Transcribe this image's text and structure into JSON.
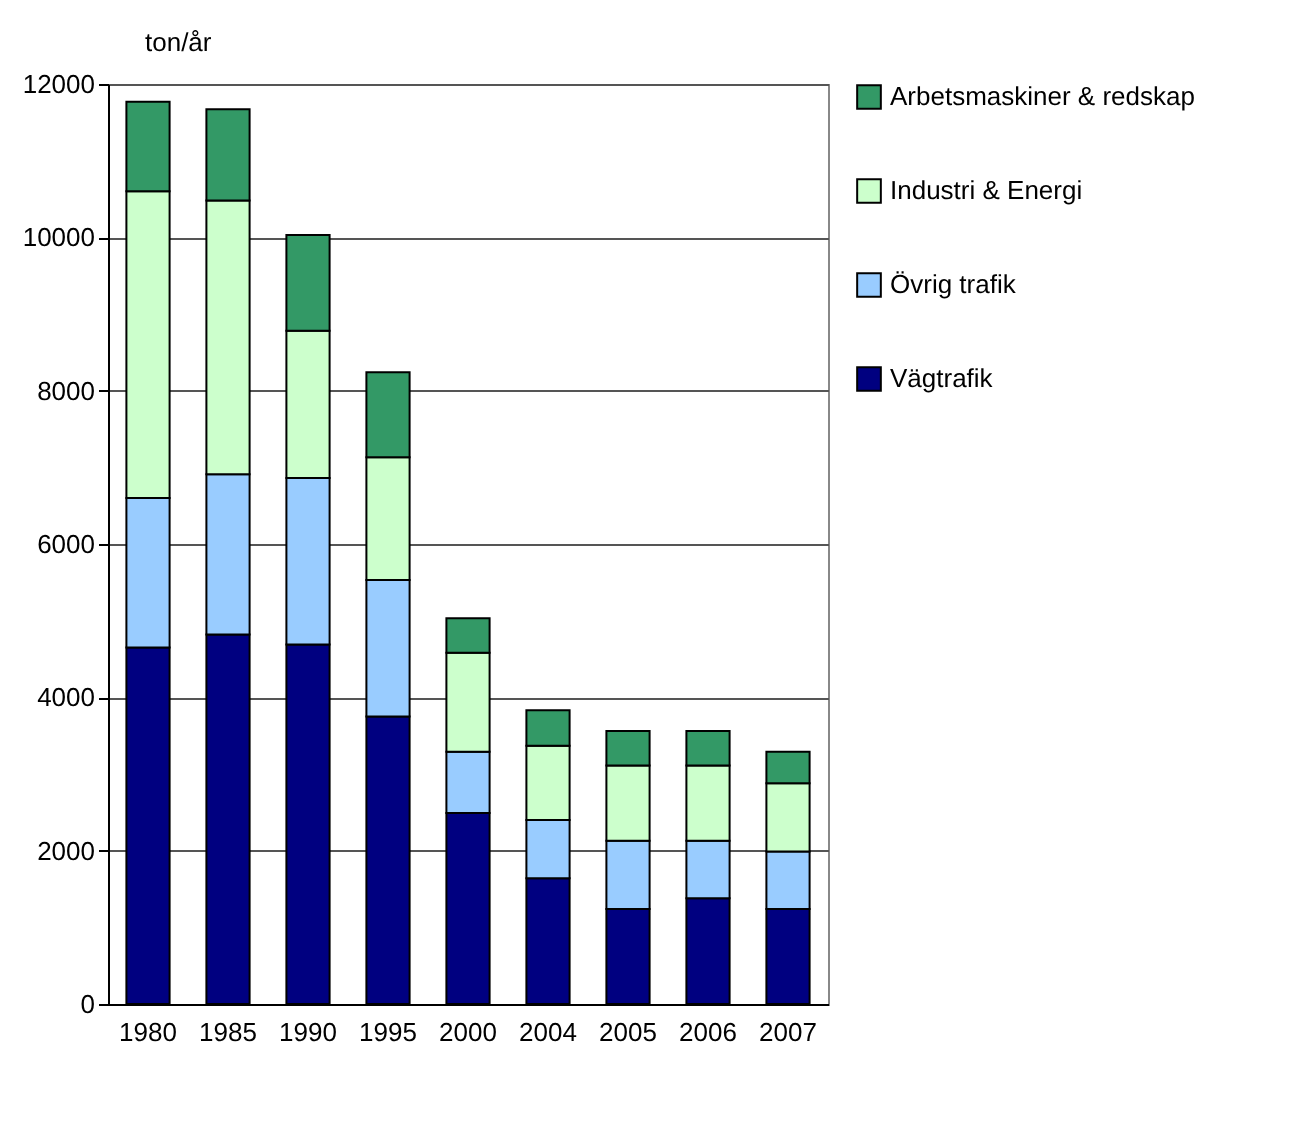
{
  "chart_data": {
    "type": "bar",
    "stacked": true,
    "ylabel": "ton/år",
    "categories": [
      "1980",
      "1985",
      "1990",
      "1995",
      "2000",
      "2004",
      "2005",
      "2006",
      "2007"
    ],
    "series": [
      {
        "name": "Vägtrafik",
        "color": "#000080",
        "values": [
          4650,
          4820,
          4690,
          3750,
          2490,
          1640,
          1240,
          1380,
          1240
        ]
      },
      {
        "name": "Övrig trafik",
        "color": "#99ccff",
        "values": [
          1950,
          2090,
          2170,
          1780,
          800,
          760,
          890,
          750,
          750
        ]
      },
      {
        "name": "Industri & Energi",
        "color": "#ccffcc",
        "values": [
          4000,
          3570,
          1920,
          1600,
          1290,
          970,
          980,
          980,
          890
        ]
      },
      {
        "name": "Arbetsmaskiner & redskap",
        "color": "#339966",
        "values": [
          1170,
          1190,
          1250,
          1110,
          450,
          460,
          450,
          450,
          410
        ]
      }
    ],
    "ylim": [
      0,
      12000
    ],
    "yticks": [
      0,
      2000,
      4000,
      6000,
      8000,
      10000,
      12000
    ],
    "grid": "y",
    "legend": "right"
  }
}
